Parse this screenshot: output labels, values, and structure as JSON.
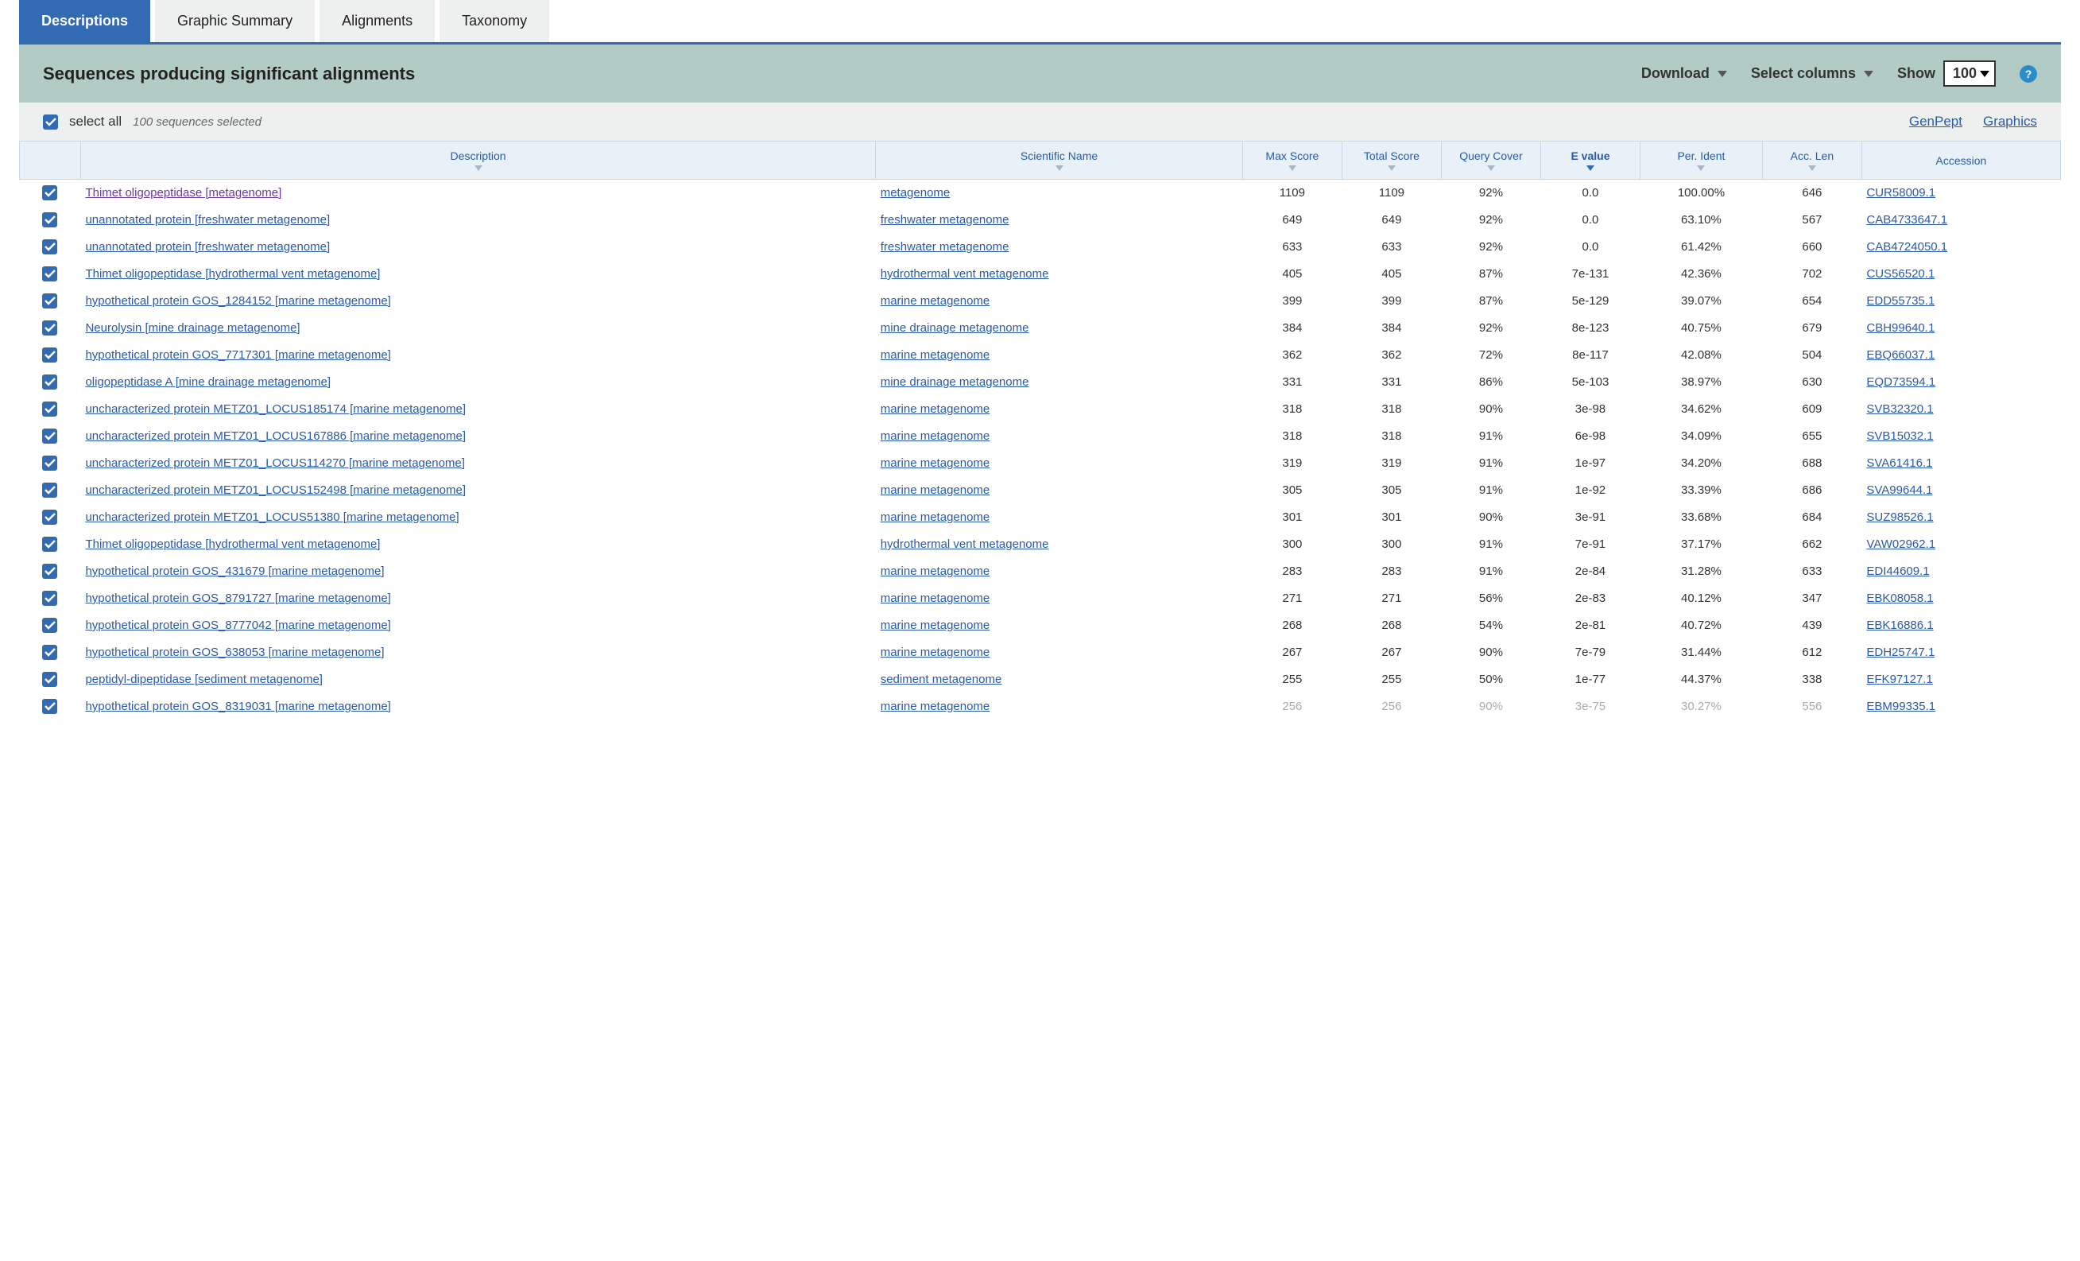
{
  "tabs": {
    "descriptions": "Descriptions",
    "graphic": "Graphic Summary",
    "alignments": "Alignments",
    "taxonomy": "Taxonomy"
  },
  "header": {
    "title": "Sequences producing significant alignments",
    "download": "Download",
    "select_columns": "Select columns",
    "show": "Show",
    "show_value": "100"
  },
  "toolbar": {
    "select_all": "select all",
    "selected_text": "100 sequences selected",
    "genpept": "GenPept",
    "graphics": "Graphics"
  },
  "columns": {
    "description": "Description",
    "scientific": "Scientific Name",
    "max_score": "Max Score",
    "total_score": "Total Score",
    "query_cover": "Query Cover",
    "e_value": "E value",
    "per_ident": "Per. Ident",
    "acc_len": "Acc. Len",
    "accession": "Accession"
  },
  "rows": [
    {
      "desc": "Thimet oligopeptidase [metagenome]",
      "visited": true,
      "sci": "metagenome",
      "max": "1109",
      "total": "1109",
      "cover": "92%",
      "e": "0.0",
      "ident": "100.00%",
      "len": "646",
      "acc": "CUR58009.1"
    },
    {
      "desc": "unannotated protein [freshwater metagenome]",
      "sci": "freshwater metagenome",
      "max": "649",
      "total": "649",
      "cover": "92%",
      "e": "0.0",
      "ident": "63.10%",
      "len": "567",
      "acc": "CAB4733647.1"
    },
    {
      "desc": "unannotated protein [freshwater metagenome]",
      "sci": "freshwater metagenome",
      "max": "633",
      "total": "633",
      "cover": "92%",
      "e": "0.0",
      "ident": "61.42%",
      "len": "660",
      "acc": "CAB4724050.1"
    },
    {
      "desc": "Thimet oligopeptidase [hydrothermal vent metagenome]",
      "sci": "hydrothermal vent metagenome",
      "max": "405",
      "total": "405",
      "cover": "87%",
      "e": "7e-131",
      "ident": "42.36%",
      "len": "702",
      "acc": "CUS56520.1"
    },
    {
      "desc": "hypothetical protein GOS_1284152 [marine metagenome]",
      "sci": "marine metagenome",
      "max": "399",
      "total": "399",
      "cover": "87%",
      "e": "5e-129",
      "ident": "39.07%",
      "len": "654",
      "acc": "EDD55735.1"
    },
    {
      "desc": "Neurolysin [mine drainage metagenome]",
      "sci": "mine drainage metagenome",
      "max": "384",
      "total": "384",
      "cover": "92%",
      "e": "8e-123",
      "ident": "40.75%",
      "len": "679",
      "acc": "CBH99640.1"
    },
    {
      "desc": "hypothetical protein GOS_7717301 [marine metagenome]",
      "sci": "marine metagenome",
      "max": "362",
      "total": "362",
      "cover": "72%",
      "e": "8e-117",
      "ident": "42.08%",
      "len": "504",
      "acc": "EBQ66037.1"
    },
    {
      "desc": "oligopeptidase A [mine drainage metagenome]",
      "sci": "mine drainage metagenome",
      "max": "331",
      "total": "331",
      "cover": "86%",
      "e": "5e-103",
      "ident": "38.97%",
      "len": "630",
      "acc": "EQD73594.1"
    },
    {
      "desc": "uncharacterized protein METZ01_LOCUS185174 [marine metagenome]",
      "sci": "marine metagenome",
      "max": "318",
      "total": "318",
      "cover": "90%",
      "e": "3e-98",
      "ident": "34.62%",
      "len": "609",
      "acc": "SVB32320.1"
    },
    {
      "desc": "uncharacterized protein METZ01_LOCUS167886 [marine metagenome]",
      "sci": "marine metagenome",
      "max": "318",
      "total": "318",
      "cover": "91%",
      "e": "6e-98",
      "ident": "34.09%",
      "len": "655",
      "acc": "SVB15032.1"
    },
    {
      "desc": "uncharacterized protein METZ01_LOCUS114270 [marine metagenome]",
      "sci": "marine metagenome",
      "max": "319",
      "total": "319",
      "cover": "91%",
      "e": "1e-97",
      "ident": "34.20%",
      "len": "688",
      "acc": "SVA61416.1"
    },
    {
      "desc": "uncharacterized protein METZ01_LOCUS152498 [marine metagenome]",
      "sci": "marine metagenome",
      "max": "305",
      "total": "305",
      "cover": "91%",
      "e": "1e-92",
      "ident": "33.39%",
      "len": "686",
      "acc": "SVA99644.1"
    },
    {
      "desc": "uncharacterized protein METZ01_LOCUS51380 [marine metagenome]",
      "sci": "marine metagenome",
      "max": "301",
      "total": "301",
      "cover": "90%",
      "e": "3e-91",
      "ident": "33.68%",
      "len": "684",
      "acc": "SUZ98526.1"
    },
    {
      "desc": "Thimet oligopeptidase [hydrothermal vent metagenome]",
      "sci": "hydrothermal vent metagenome",
      "max": "300",
      "total": "300",
      "cover": "91%",
      "e": "7e-91",
      "ident": "37.17%",
      "len": "662",
      "acc": "VAW02962.1"
    },
    {
      "desc": "hypothetical protein GOS_431679 [marine metagenome]",
      "sci": "marine metagenome",
      "max": "283",
      "total": "283",
      "cover": "91%",
      "e": "2e-84",
      "ident": "31.28%",
      "len": "633",
      "acc": "EDI44609.1"
    },
    {
      "desc": "hypothetical protein GOS_8791727 [marine metagenome]",
      "sci": "marine metagenome",
      "max": "271",
      "total": "271",
      "cover": "56%",
      "e": "2e-83",
      "ident": "40.12%",
      "len": "347",
      "acc": "EBK08058.1"
    },
    {
      "desc": "hypothetical protein GOS_8777042 [marine metagenome]",
      "sci": "marine metagenome",
      "max": "268",
      "total": "268",
      "cover": "54%",
      "e": "2e-81",
      "ident": "40.72%",
      "len": "439",
      "acc": "EBK16886.1"
    },
    {
      "desc": "hypothetical protein GOS_638053 [marine metagenome]",
      "sci": "marine metagenome",
      "max": "267",
      "total": "267",
      "cover": "90%",
      "e": "7e-79",
      "ident": "31.44%",
      "len": "612",
      "acc": "EDH25747.1"
    },
    {
      "desc": "peptidyl-dipeptidase [sediment metagenome]",
      "sci": "sediment metagenome",
      "max": "255",
      "total": "255",
      "cover": "50%",
      "e": "1e-77",
      "ident": "44.37%",
      "len": "338",
      "acc": "EFK97127.1"
    },
    {
      "desc": "hypothetical protein GOS_8319031 [marine metagenome]",
      "sci": "marine metagenome",
      "max": "256",
      "total": "256",
      "cover": "90%",
      "e": "3e-75",
      "ident": "30.27%",
      "len": "556",
      "acc": "EBM99335.1"
    }
  ]
}
